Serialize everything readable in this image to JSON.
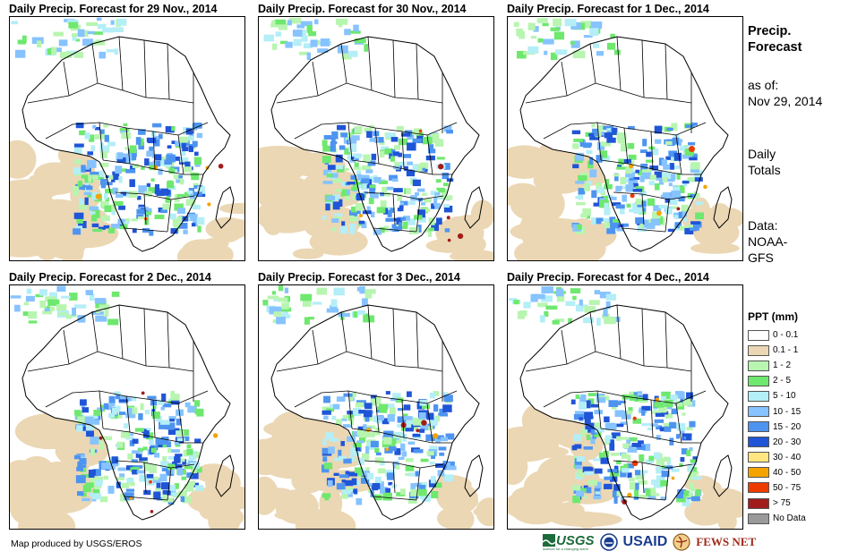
{
  "panels": [
    {
      "title": "Daily Precip. Forecast for 29 Nov., 2014",
      "seed": 11
    },
    {
      "title": "Daily Precip. Forecast for 30 Nov., 2014",
      "seed": 23
    },
    {
      "title": "Daily Precip. Forecast for 1 Dec., 2014",
      "seed": 37
    },
    {
      "title": "Daily Precip. Forecast for 2 Dec., 2014",
      "seed": 41
    },
    {
      "title": "Daily Precip. Forecast for 3 Dec., 2014",
      "seed": 53
    },
    {
      "title": "Daily Precip. Forecast for 4 Dec., 2014",
      "seed": 67
    }
  ],
  "side": {
    "title_line1": "Precip.",
    "title_line2": "Forecast",
    "asof_label": "as of:",
    "asof_date": "Nov 29, 2014",
    "totals_line1": "Daily",
    "totals_line2": "Totals",
    "data_line1": "Data:",
    "data_line2": "NOAA-",
    "data_line3": "GFS"
  },
  "legend": {
    "title": "PPT (mm)",
    "items": [
      {
        "label": "0 - 0.1",
        "color": "#ffffff"
      },
      {
        "label": "0.1 - 1",
        "color": "#ebd7b4"
      },
      {
        "label": "1 - 2",
        "color": "#b8f5b0"
      },
      {
        "label": "2 - 5",
        "color": "#6ee86e"
      },
      {
        "label": "5 - 10",
        "color": "#b4eef7"
      },
      {
        "label": "10 - 15",
        "color": "#86c3ff"
      },
      {
        "label": "15 - 20",
        "color": "#4d94f0"
      },
      {
        "label": "20 - 30",
        "color": "#1f55d6"
      },
      {
        "label": "30 - 40",
        "color": "#ffe680"
      },
      {
        "label": "40 - 50",
        "color": "#f5a300"
      },
      {
        "label": "50 - 75",
        "color": "#ee3b00"
      },
      {
        "label": "> 75",
        "color": "#a31c1c"
      },
      {
        "label": "No Data",
        "color": "#9a9a9a"
      }
    ]
  },
  "footer": {
    "credit": "Map produced by USGS/EROS"
  },
  "logos": {
    "usgs": "USGS",
    "usgs_tagline": "science for a changing world",
    "usaid": "USAID",
    "fewsnet": "FEWS NET"
  }
}
